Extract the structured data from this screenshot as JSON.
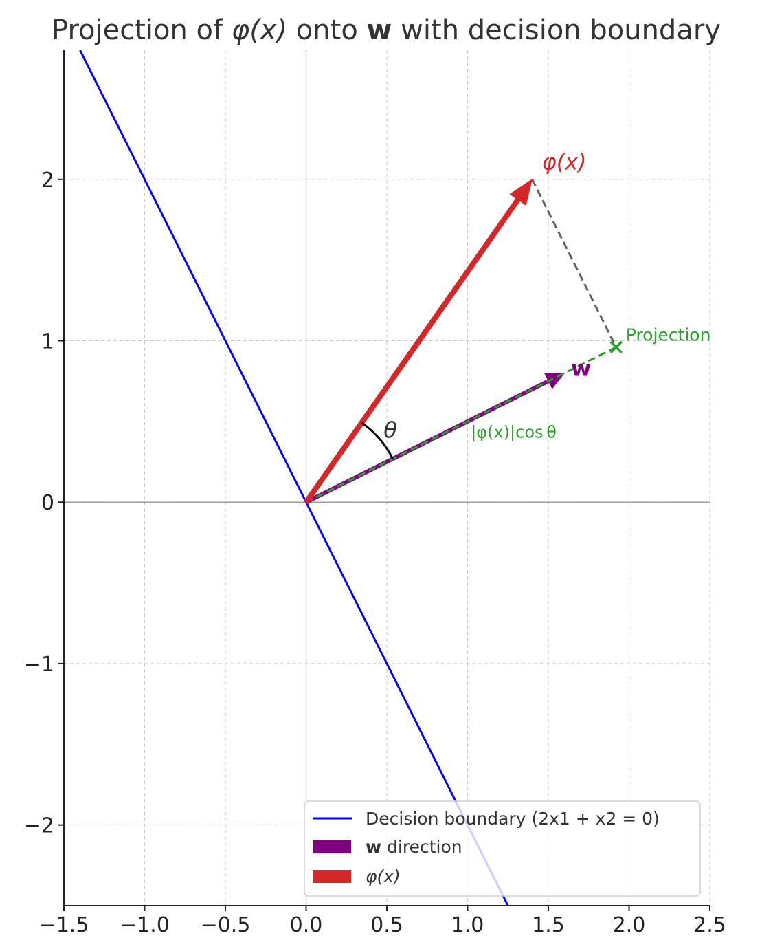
{
  "chart_data": {
    "type": "line",
    "title": "Projection of φ(x) onto w with decision boundary",
    "title_parts": {
      "pre": "Projection of ",
      "phi": "φ(x)",
      "mid": " onto ",
      "w": "w",
      "post": " with decision boundary"
    },
    "xlim": [
      -1.5,
      2.5
    ],
    "ylim": [
      -2.5,
      2.8
    ],
    "xticks": [
      -1.5,
      -1.0,
      -0.5,
      0.0,
      0.5,
      1.0,
      1.5,
      2.0,
      2.5
    ],
    "xtick_labels": [
      "−1.5",
      "−1.0",
      "−0.5",
      "0.0",
      "0.5",
      "1.0",
      "1.5",
      "2.0",
      "2.5"
    ],
    "yticks": [
      -2,
      -1,
      0,
      1,
      2
    ],
    "ytick_labels": [
      "−2",
      "−1",
      "0",
      "1",
      "2"
    ],
    "grid": true,
    "decision_boundary": {
      "equation": "2x1 + x2 = 0",
      "slope": -2,
      "color": "#0000ff"
    },
    "vectors": [
      {
        "name": "w",
        "from": [
          0,
          0
        ],
        "to": [
          1.6,
          0.8
        ],
        "color": "#800080",
        "label": "w"
      },
      {
        "name": "phi",
        "from": [
          0,
          0
        ],
        "to": [
          1.4,
          2.0
        ],
        "color": "#d62728",
        "label": "φ(x)"
      }
    ],
    "projection": {
      "point": [
        1.92,
        0.96
      ],
      "label": "Projection",
      "color": "#2ca02c",
      "length_label": "|φ(x)|cos θ"
    },
    "angle_label": "θ",
    "angle_radius": 0.6,
    "legend": {
      "placement": "lower-right",
      "entries": [
        {
          "label": "Decision boundary (2x1 + x2 = 0)",
          "color": "#0000ff",
          "kind": "line"
        },
        {
          "label_bold": "w",
          "label": " direction",
          "color": "#800080",
          "kind": "patch"
        },
        {
          "label": "φ(x)",
          "color": "#d62728",
          "kind": "patch"
        }
      ]
    }
  }
}
